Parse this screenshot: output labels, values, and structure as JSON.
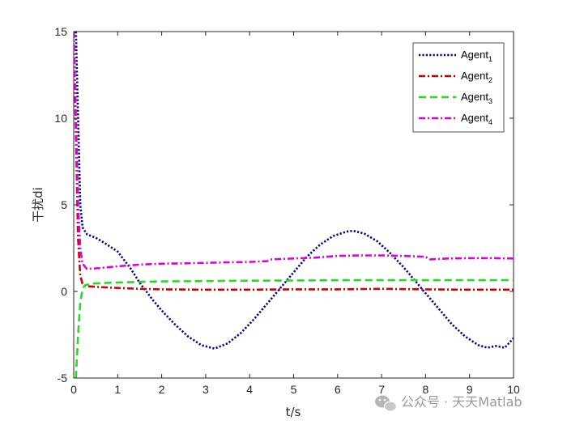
{
  "chart_data": {
    "type": "line",
    "xlabel": "t/s",
    "ylabel": "干扰di",
    "xlim": [
      0,
      10
    ],
    "ylim": [
      -5,
      15
    ],
    "xticks": [
      "0",
      "1",
      "2",
      "3",
      "4",
      "5",
      "6",
      "7",
      "8",
      "9",
      "10"
    ],
    "yticks": [
      "-5",
      "0",
      "5",
      "10",
      "15"
    ],
    "grid": false,
    "legend_position": "top-right",
    "series": [
      {
        "name": "Agent",
        "subscript": "1",
        "color": "#00008b",
        "dash": "dotted",
        "points": [
          [
            0.05,
            15
          ],
          [
            0.1,
            10
          ],
          [
            0.15,
            5
          ],
          [
            0.2,
            3.7
          ],
          [
            0.3,
            3.3
          ],
          [
            0.5,
            3.1
          ],
          [
            0.7,
            2.8
          ],
          [
            1.0,
            2.3
          ],
          [
            1.3,
            1.3
          ],
          [
            1.5,
            0.5
          ],
          [
            1.8,
            -0.5
          ],
          [
            2.0,
            -1.1
          ],
          [
            2.3,
            -1.9
          ],
          [
            2.6,
            -2.6
          ],
          [
            2.9,
            -3.1
          ],
          [
            3.2,
            -3.3
          ],
          [
            3.5,
            -3.0
          ],
          [
            3.8,
            -2.4
          ],
          [
            4.1,
            -1.6
          ],
          [
            4.4,
            -0.7
          ],
          [
            4.7,
            0.2
          ],
          [
            5.0,
            1.1
          ],
          [
            5.3,
            2.0
          ],
          [
            5.6,
            2.7
          ],
          [
            5.9,
            3.2
          ],
          [
            6.2,
            3.45
          ],
          [
            6.35,
            3.5
          ],
          [
            6.6,
            3.35
          ],
          [
            6.9,
            2.9
          ],
          [
            7.2,
            2.2
          ],
          [
            7.5,
            1.4
          ],
          [
            7.8,
            0.5
          ],
          [
            8.0,
            -0.1
          ],
          [
            8.3,
            -1.0
          ],
          [
            8.6,
            -1.9
          ],
          [
            8.9,
            -2.6
          ],
          [
            9.2,
            -3.1
          ],
          [
            9.4,
            -3.25
          ],
          [
            9.6,
            -3.15
          ],
          [
            9.8,
            -3.25
          ],
          [
            10.0,
            -2.7
          ]
        ]
      },
      {
        "name": "Agent",
        "subscript": "2",
        "color": "#cc0000",
        "dash": "dashdot",
        "points": [
          [
            0.0,
            15
          ],
          [
            0.05,
            9
          ],
          [
            0.1,
            3
          ],
          [
            0.15,
            0.9
          ],
          [
            0.2,
            0.45
          ],
          [
            0.3,
            0.3
          ],
          [
            0.6,
            0.25
          ],
          [
            1.0,
            0.2
          ],
          [
            1.5,
            0.15
          ],
          [
            2.0,
            0.12
          ],
          [
            3.0,
            0.1
          ],
          [
            4.0,
            0.1
          ],
          [
            5.0,
            0.12
          ],
          [
            6.0,
            0.12
          ],
          [
            7.0,
            0.15
          ],
          [
            8.0,
            0.12
          ],
          [
            9.0,
            0.1
          ],
          [
            10.0,
            0.1
          ]
        ]
      },
      {
        "name": "Agent",
        "subscript": "3",
        "color": "#22dd22",
        "dash": "dashed",
        "points": [
          [
            0.05,
            -5
          ],
          [
            0.1,
            -2.5
          ],
          [
            0.15,
            -0.6
          ],
          [
            0.2,
            0.1
          ],
          [
            0.25,
            0.35
          ],
          [
            0.4,
            0.45
          ],
          [
            0.8,
            0.5
          ],
          [
            1.5,
            0.55
          ],
          [
            2.0,
            0.58
          ],
          [
            3.0,
            0.6
          ],
          [
            4.0,
            0.62
          ],
          [
            5.0,
            0.63
          ],
          [
            6.0,
            0.65
          ],
          [
            7.0,
            0.65
          ],
          [
            8.0,
            0.65
          ],
          [
            9.0,
            0.65
          ],
          [
            10.0,
            0.65
          ]
        ]
      },
      {
        "name": "Agent",
        "subscript": "4",
        "color": "#dd00dd",
        "dash": "dashdot",
        "points": [
          [
            0.0,
            15
          ],
          [
            0.05,
            10
          ],
          [
            0.1,
            5
          ],
          [
            0.15,
            2.5
          ],
          [
            0.2,
            1.6
          ],
          [
            0.3,
            1.3
          ],
          [
            0.6,
            1.35
          ],
          [
            1.0,
            1.45
          ],
          [
            1.5,
            1.55
          ],
          [
            2.0,
            1.6
          ],
          [
            2.5,
            1.62
          ],
          [
            3.0,
            1.65
          ],
          [
            3.5,
            1.68
          ],
          [
            4.0,
            1.7
          ],
          [
            4.4,
            1.75
          ],
          [
            4.5,
            1.85
          ],
          [
            5.0,
            1.9
          ],
          [
            5.5,
            1.95
          ],
          [
            6.0,
            2.05
          ],
          [
            6.5,
            2.08
          ],
          [
            7.0,
            2.08
          ],
          [
            7.5,
            2.05
          ],
          [
            8.0,
            2.0
          ],
          [
            8.1,
            1.85
          ],
          [
            8.5,
            1.9
          ],
          [
            9.0,
            1.92
          ],
          [
            9.5,
            1.92
          ],
          [
            10.0,
            1.9
          ]
        ]
      }
    ]
  },
  "watermark": {
    "icon": "wechat-icon",
    "text": "公众号 · 天天Matlab"
  }
}
